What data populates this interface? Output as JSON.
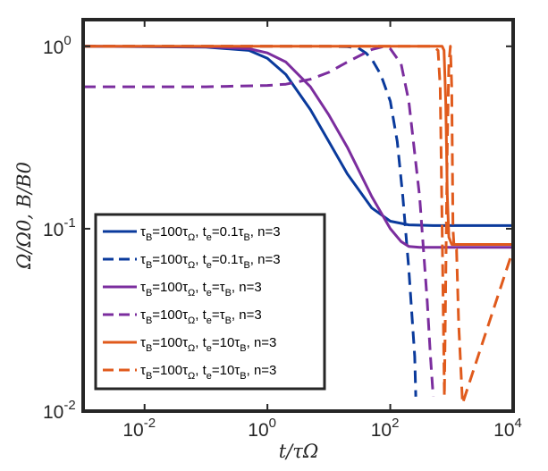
{
  "chart_data": {
    "type": "line",
    "xlabel": "t/τΩ",
    "ylabel": "Ω/Ω0, B/B0",
    "x_scale": "log",
    "y_scale": "log",
    "xlim": [
      0.001,
      10000
    ],
    "ylim": [
      0.01,
      1.4
    ],
    "x_ticks": [
      {
        "value": 0.01,
        "base": "10",
        "exp": "-2"
      },
      {
        "value": 1,
        "base": "10",
        "exp": "0"
      },
      {
        "value": 100,
        "base": "10",
        "exp": "2"
      },
      {
        "value": 10000,
        "base": "10",
        "exp": "4"
      }
    ],
    "y_ticks": [
      {
        "value": 0.01,
        "base": "10",
        "exp": "-2"
      },
      {
        "value": 0.1,
        "base": "10",
        "exp": "-1"
      },
      {
        "value": 1,
        "base": "10",
        "exp": "0"
      }
    ],
    "grid": false,
    "legend_position": "lower-left",
    "series": [
      {
        "color": "#0a3a9c",
        "dash": "solid",
        "legend": {
          "tau": "τ",
          "tauSub": "B",
          "mid": "=100",
          "tau2": "τ",
          "tau2Sub": "Ω",
          "sep": ", t",
          "teSub": "e",
          "rest": "=0.1τ",
          "restSub": "B",
          "tail": ", n=3"
        },
        "x": [
          0.001,
          0.1,
          0.5,
          1,
          2,
          5,
          10,
          20,
          50,
          100,
          200,
          500,
          1000,
          10000
        ],
        "y": [
          1,
          0.99,
          0.95,
          0.86,
          0.7,
          0.45,
          0.3,
          0.2,
          0.13,
          0.11,
          0.105,
          0.104,
          0.104,
          0.104
        ]
      },
      {
        "color": "#0a3a9c",
        "dash": "dashed",
        "legend": {
          "tau": "τ",
          "tauSub": "B",
          "mid": "=100",
          "tau2": "τ",
          "tau2Sub": "Ω",
          "sep": ", t",
          "teSub": "e",
          "rest": "=0.1τ",
          "restSub": "B",
          "tail": ", n=3"
        },
        "x": [
          0.001,
          1,
          5,
          10,
          20,
          30,
          40,
          50,
          70,
          100,
          130,
          160,
          200,
          250,
          260
        ],
        "y": [
          1,
          1,
          1,
          1,
          0.995,
          0.98,
          0.92,
          0.85,
          0.7,
          0.5,
          0.3,
          0.15,
          0.06,
          0.02,
          0.012
        ]
      },
      {
        "color": "#7b2d9e",
        "dash": "solid",
        "legend": {
          "tau": "τ",
          "tauSub": "B",
          "mid": "=100",
          "tau2": "τ",
          "tau2Sub": "Ω",
          "sep": ", t",
          "teSub": "e",
          "rest": "=τ",
          "restSub": "B",
          "tail": ", n=3"
        },
        "x": [
          0.001,
          0.1,
          0.5,
          1,
          2,
          5,
          10,
          20,
          50,
          100,
          150,
          200,
          300,
          1000,
          10000
        ],
        "y": [
          1,
          0.995,
          0.97,
          0.92,
          0.82,
          0.6,
          0.42,
          0.28,
          0.15,
          0.1,
          0.085,
          0.08,
          0.079,
          0.079,
          0.079
        ]
      },
      {
        "color": "#7b2d9e",
        "dash": "dashed",
        "legend": {
          "tau": "τ",
          "tauSub": "B",
          "mid": "=100",
          "tau2": "τ",
          "tau2Sub": "Ω",
          "sep": ", t",
          "teSub": "e",
          "rest": "=τ",
          "restSub": "B",
          "tail": ", n=3"
        },
        "x": [
          0.001,
          0.1,
          1,
          2,
          5,
          10,
          20,
          50,
          80,
          100,
          150,
          200,
          300,
          400,
          450,
          500
        ],
        "y": [
          0.6,
          0.6,
          0.61,
          0.62,
          0.66,
          0.72,
          0.82,
          0.96,
          1.0,
          0.97,
          0.8,
          0.5,
          0.15,
          0.04,
          0.02,
          0.012
        ]
      },
      {
        "color": "#e05a1c",
        "dash": "solid",
        "legend": {
          "tau": "τ",
          "tauSub": "B",
          "mid": "=100",
          "tau2": "τ",
          "tau2Sub": "Ω",
          "sep": ", t",
          "teSub": "e",
          "rest": "=10τ",
          "restSub": "B",
          "tail": ", n=3"
        },
        "x": [
          0.001,
          100,
          500,
          700,
          750,
          800,
          850,
          900,
          1000,
          10000
        ],
        "y": [
          1,
          1,
          1,
          1,
          0.95,
          0.5,
          0.15,
          0.09,
          0.082,
          0.082
        ]
      },
      {
        "color": "#e05a1c",
        "dash": "dashed",
        "legend": {
          "tau": "τ",
          "tauSub": "B",
          "mid": "=100",
          "tau2": "τ",
          "tau2Sub": "Ω",
          "sep": ", t",
          "teSub": "e",
          "rest": "=10τ",
          "restSub": "B",
          "tail": ", n=3"
        },
        "x": [
          0.001,
          100,
          300,
          500,
          600,
          650,
          700,
          760,
          850,
          900,
          950,
          1000,
          1050,
          1100,
          1200,
          1300,
          1500,
          10000
        ],
        "y": [
          1,
          1,
          1,
          1,
          0.95,
          0.6,
          0.1,
          0.012,
          0.3,
          0.8,
          1.0,
          0.6,
          0.1,
          0.077,
          0.077,
          0.03,
          0.011,
          0.077
        ]
      }
    ]
  }
}
